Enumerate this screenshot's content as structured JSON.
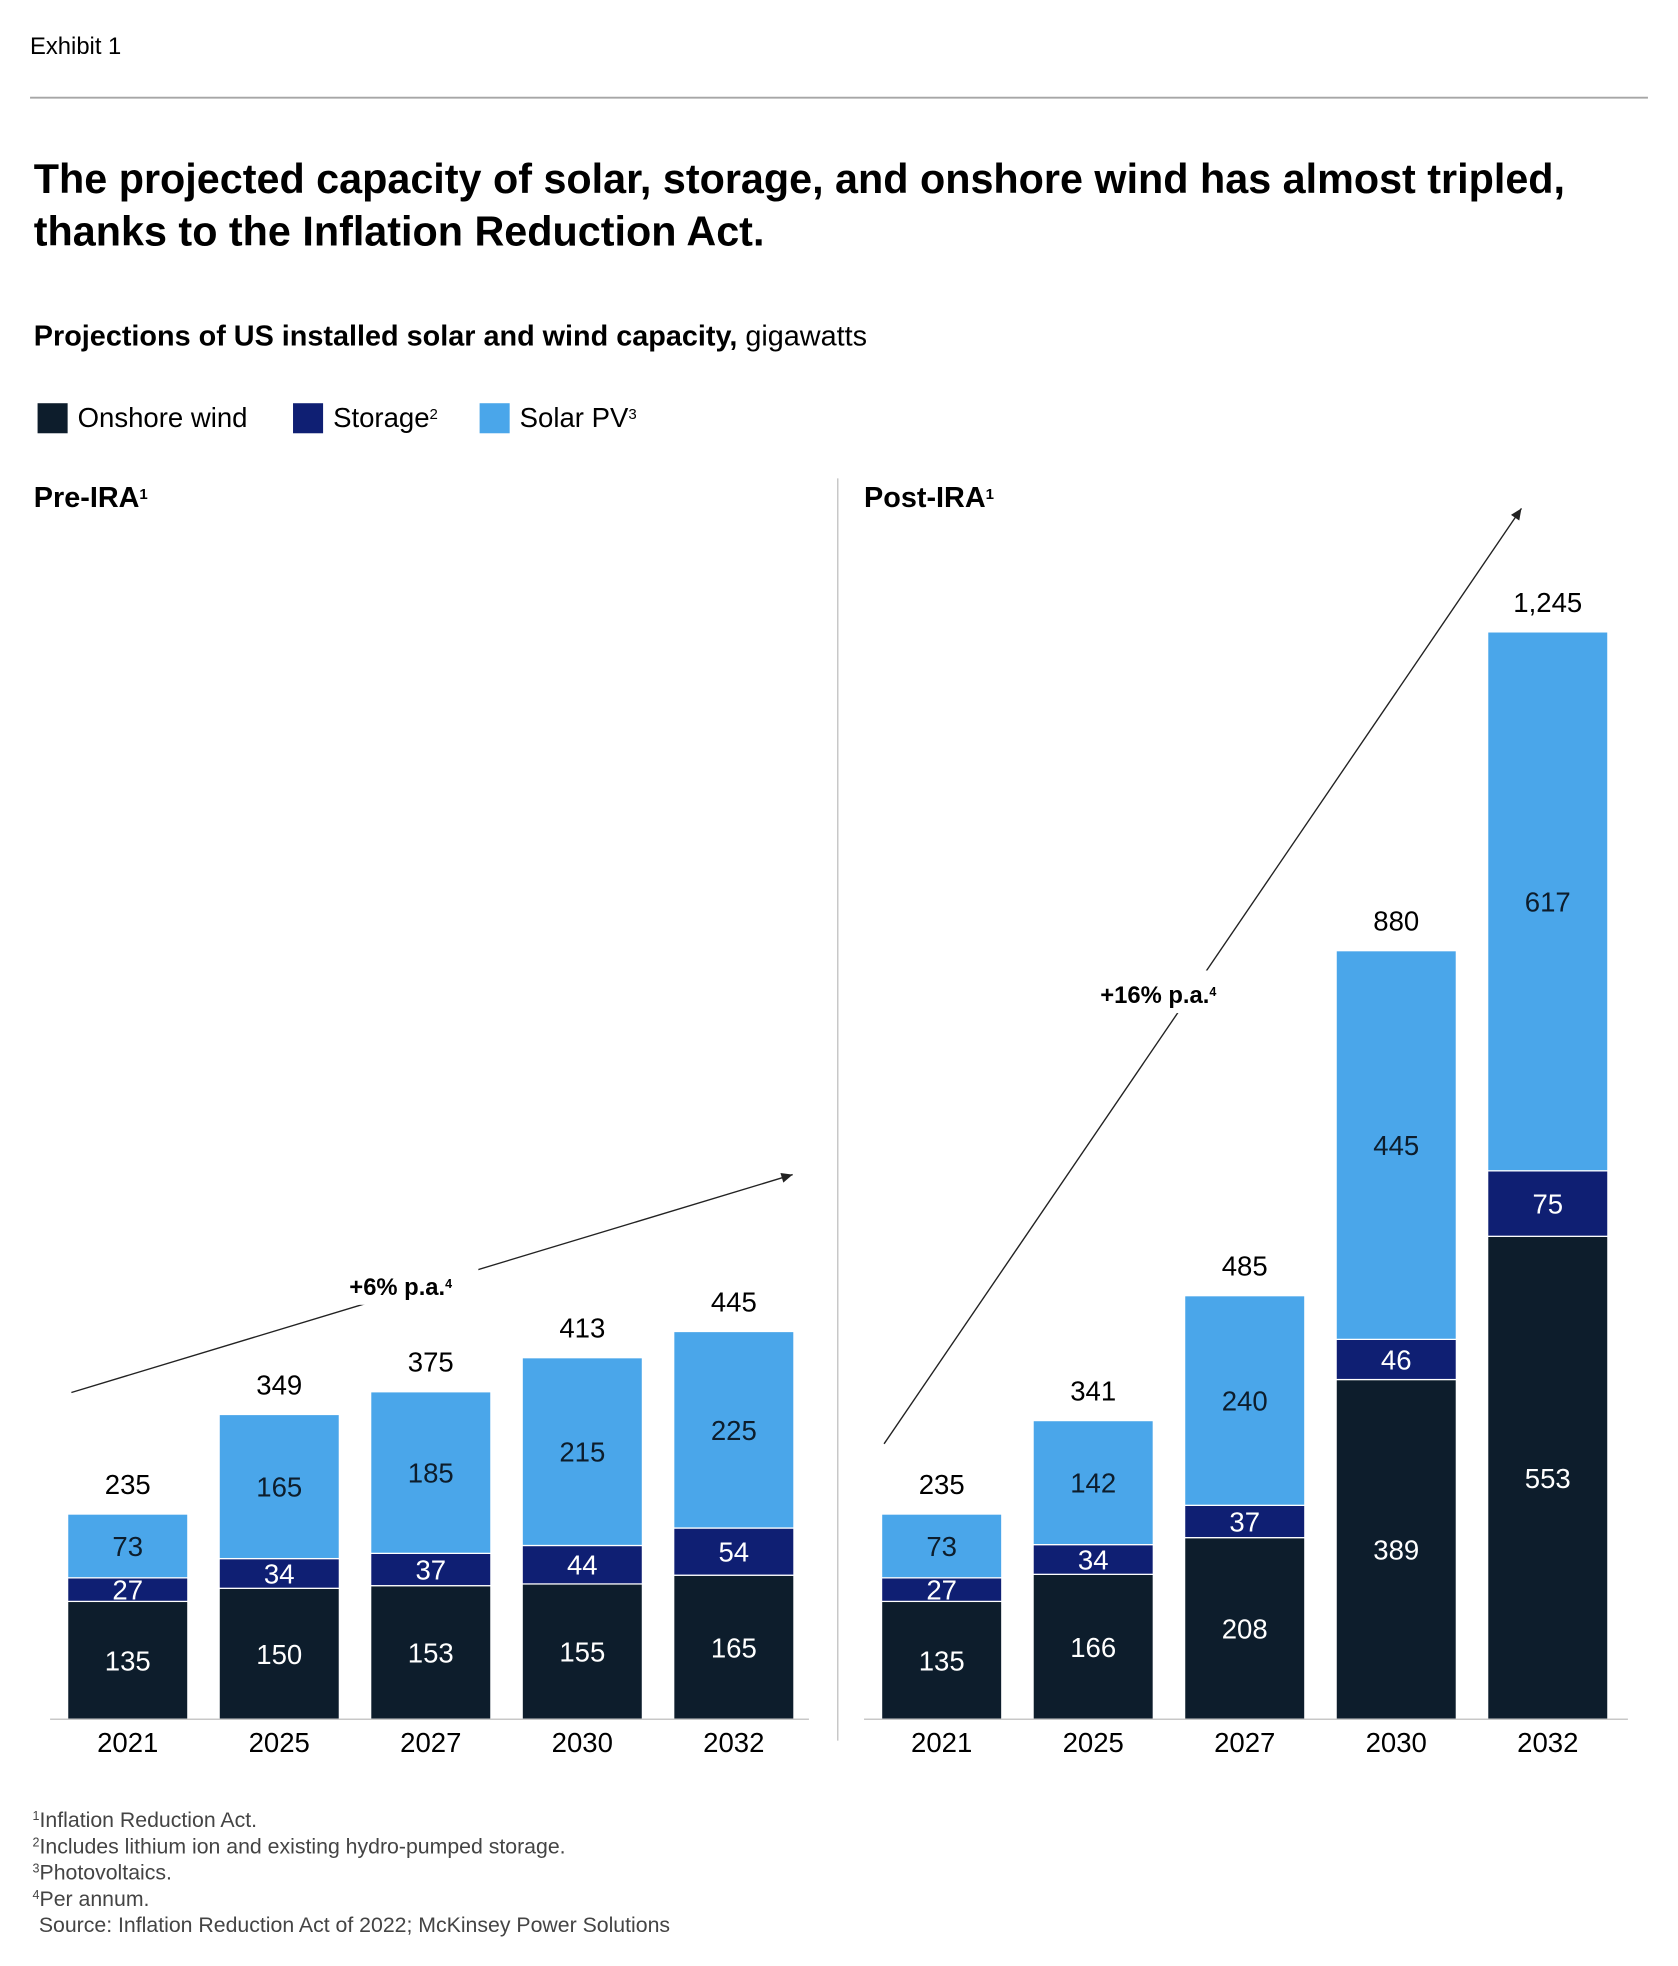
{
  "exhibit_label": "Exhibit 1",
  "title_line1": "The projected capacity of solar, storage, and onshore wind has almost tripled,",
  "title_line2": "thanks to the Inflation Reduction Act.",
  "subtitle_bold": "Projections of US installed solar and wind capacity,",
  "subtitle_unit": " gigawatts",
  "legend": [
    {
      "label": "Onshore wind",
      "sup": "",
      "color": "#0d1d2c"
    },
    {
      "label": "Storage",
      "sup": "2",
      "color": "#0f1f73"
    },
    {
      "label": "Solar PV",
      "sup": "3",
      "color": "#4aa6ea"
    }
  ],
  "chart_data": [
    {
      "type": "bar",
      "stacked": true,
      "title": "Pre-IRA",
      "title_sup": "1",
      "categories": [
        "2021",
        "2025",
        "2027",
        "2030",
        "2032"
      ],
      "series": [
        {
          "name": "Onshore wind",
          "values": [
            135,
            150,
            153,
            155,
            165
          ]
        },
        {
          "name": "Storage",
          "values": [
            27,
            34,
            37,
            44,
            54
          ]
        },
        {
          "name": "Solar PV",
          "values": [
            73,
            165,
            185,
            215,
            225
          ]
        }
      ],
      "totals": [
        "235",
        "349",
        "375",
        "413",
        "445"
      ],
      "growth_annotation": "+6% p.a.",
      "growth_sup": "4"
    },
    {
      "type": "bar",
      "stacked": true,
      "title": "Post-IRA",
      "title_sup": "1",
      "categories": [
        "2021",
        "2025",
        "2027",
        "2030",
        "2032"
      ],
      "series": [
        {
          "name": "Onshore wind",
          "values": [
            135,
            166,
            208,
            389,
            553
          ]
        },
        {
          "name": "Storage",
          "values": [
            27,
            34,
            37,
            46,
            75
          ]
        },
        {
          "name": "Solar PV",
          "values": [
            73,
            142,
            240,
            445,
            617
          ]
        }
      ],
      "totals": [
        "235",
        "341",
        "485",
        "880",
        "1,245"
      ],
      "growth_annotation": "+16% p.a.",
      "growth_sup": "4"
    }
  ],
  "footnotes": [
    {
      "sup": "1",
      "text": "Inflation Reduction Act."
    },
    {
      "sup": "2",
      "text": "Includes lithium ion and existing hydro-pumped storage."
    },
    {
      "sup": "3",
      "text": "Photovoltaics."
    },
    {
      "sup": "4",
      "text": "Per annum."
    }
  ],
  "source": "Source: Inflation Reduction Act of 2022; McKinsey Power Solutions"
}
